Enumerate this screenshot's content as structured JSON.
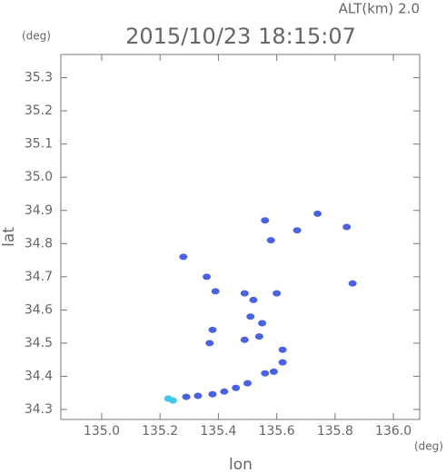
{
  "chart_data": {
    "type": "scatter",
    "title": "2015/10/23 18:15:07",
    "subtitle": "ALT(km) 2.0",
    "y_unit": "(deg)",
    "x_unit": "(deg)",
    "x_label": "lon",
    "y_label": "lat",
    "xlim": [
      134.86,
      136.09
    ],
    "ylim": [
      34.27,
      35.37
    ],
    "xticks": [
      {
        "value": 135,
        "label": "135.0"
      },
      135.2,
      135.4,
      135.6,
      135.8,
      {
        "value": 136,
        "label": "136.0"
      }
    ],
    "yticks": [
      34.3,
      34.4,
      34.5,
      34.6,
      34.7,
      34.8,
      34.9,
      {
        "value": 35,
        "label": "35.0"
      },
      35.1,
      35.2,
      35.3
    ],
    "series": [
      {
        "color": "#40c8e8",
        "x": [
          135.228,
          135.244
        ],
        "values": [
          34.333,
          34.327
        ]
      },
      {
        "color": "#4a62e0",
        "x": [
          135.29,
          135.33,
          135.38,
          135.42,
          135.46,
          135.5,
          135.56,
          135.59,
          135.62,
          135.62,
          135.49,
          135.54,
          135.51,
          135.55,
          135.52,
          135.6,
          135.49,
          135.39,
          135.36,
          135.38,
          135.37,
          135.84,
          135.86,
          135.67,
          135.58,
          135.28,
          135.74,
          135.56
        ],
        "values": [
          34.338,
          34.341,
          34.346,
          34.354,
          34.365,
          34.379,
          34.409,
          34.414,
          34.442,
          34.48,
          34.51,
          34.52,
          34.58,
          34.56,
          34.63,
          34.65,
          34.65,
          34.656,
          34.7,
          34.54,
          34.5,
          34.85,
          34.68,
          34.84,
          34.81,
          34.76,
          34.89,
          34.87
        ]
      }
    ]
  }
}
